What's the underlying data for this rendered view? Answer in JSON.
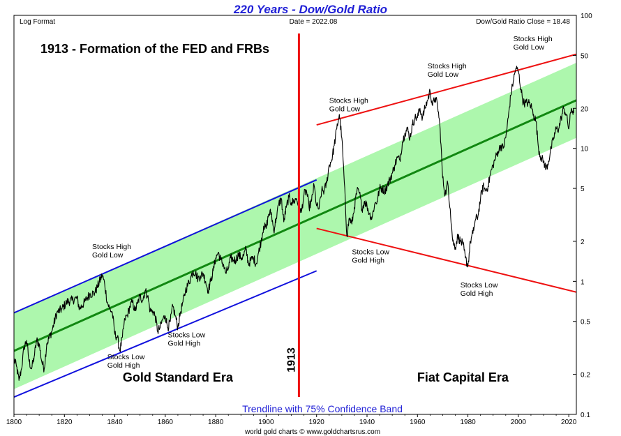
{
  "chart_data": {
    "type": "line",
    "title": "220 Years - Dow/Gold Ratio",
    "subtitle": "Trendline with 75% Confidence Band",
    "header_left": "Log Format",
    "header_center": "Date = 2022.08",
    "header_right": "Dow/Gold Ratio Close = 18.48",
    "footer": "world gold charts © www.goldchartsrus.com",
    "x_range": [
      1800,
      2023
    ],
    "y_range": [
      0.1,
      100
    ],
    "y_scale": "log",
    "x_ticks": [
      1800,
      1820,
      1840,
      1860,
      1880,
      1900,
      1920,
      1940,
      1960,
      1980,
      2000,
      2020
    ],
    "x_tick_labels": [
      "1800",
      "1820",
      "1840",
      "1860",
      "1880",
      "1900",
      "1920",
      "1940",
      "1960",
      "1980",
      "2000",
      "2020"
    ],
    "y_ticks": [
      0.1,
      0.2,
      0.5,
      1,
      2,
      5,
      10,
      20,
      50,
      100
    ],
    "y_tick_labels": [
      "0.1",
      "0.2",
      "0.5",
      "1",
      "2",
      "5",
      "10",
      "20",
      "50",
      "100"
    ],
    "heading": "1913 - Formation of the FED and FRBs",
    "marker_year": 1913,
    "marker_label": "1913",
    "eras": [
      {
        "label": "Gold Standard Era",
        "x": 1865,
        "y": 0.19
      },
      {
        "label": "Fiat Capital Era",
        "x": 1978,
        "y": 0.19
      }
    ],
    "annotations": [
      {
        "lines": [
          "Stocks High",
          "Gold Low"
        ],
        "x": 1831,
        "y": 1.75
      },
      {
        "lines": [
          "Stocks Low",
          "Gold High"
        ],
        "x": 1837,
        "y": 0.26
      },
      {
        "lines": [
          "Stocks Low",
          "Gold High"
        ],
        "x": 1861,
        "y": 0.38
      },
      {
        "lines": [
          "Stocks High",
          "Gold Low"
        ],
        "x": 1925,
        "y": 22
      },
      {
        "lines": [
          "Stocks Low",
          "Gold High"
        ],
        "x": 1934,
        "y": 1.6
      },
      {
        "lines": [
          "Stocks High",
          "Gold Low"
        ],
        "x": 1964,
        "y": 40
      },
      {
        "lines": [
          "Stocks Low",
          "Gold High"
        ],
        "x": 1977,
        "y": 0.9
      },
      {
        "lines": [
          "Stocks High",
          "Gold Low"
        ],
        "x": 1998,
        "y": 64
      }
    ],
    "trend_line": {
      "points": [
        [
          1800,
          0.3
        ],
        [
          2023,
          23
        ]
      ],
      "color": "#118811"
    },
    "confidence_band": {
      "upper": [
        [
          1800,
          0.58
        ],
        [
          2023,
          44
        ]
      ],
      "lower": [
        [
          1800,
          0.155
        ],
        [
          2023,
          12
        ]
      ],
      "color": "#adf7ad"
    },
    "channel_lines": [
      {
        "points": [
          [
            1800,
            0.58
          ],
          [
            1920,
            5.8
          ]
        ],
        "color": "#1111dd"
      },
      {
        "points": [
          [
            1800,
            0.135
          ],
          [
            1920,
            1.2
          ]
        ],
        "color": "#1111dd"
      },
      {
        "points": [
          [
            1920,
            15
          ],
          [
            2023,
            51
          ]
        ],
        "color": "#ee1111"
      },
      {
        "points": [
          [
            1920,
            2.5
          ],
          [
            2023,
            0.83
          ]
        ],
        "color": "#ee1111"
      }
    ],
    "series": [
      {
        "color": "#000000",
        "anchors": [
          [
            1800,
            0.26
          ],
          [
            1801,
            0.23
          ],
          [
            1802,
            0.18
          ],
          [
            1803,
            0.22
          ],
          [
            1804,
            0.32
          ],
          [
            1805,
            0.36
          ],
          [
            1806,
            0.25
          ],
          [
            1807,
            0.22
          ],
          [
            1808,
            0.27
          ],
          [
            1809,
            0.36
          ],
          [
            1810,
            0.34
          ],
          [
            1811,
            0.25
          ],
          [
            1812,
            0.22
          ],
          [
            1813,
            0.34
          ],
          [
            1815,
            0.42
          ],
          [
            1817,
            0.58
          ],
          [
            1819,
            0.62
          ],
          [
            1821,
            0.7
          ],
          [
            1823,
            0.72
          ],
          [
            1825,
            0.75
          ],
          [
            1826,
            0.62
          ],
          [
            1828,
            0.7
          ],
          [
            1830,
            0.8
          ],
          [
            1832,
            0.82
          ],
          [
            1833,
            0.9
          ],
          [
            1835,
            1.12
          ],
          [
            1836,
            0.95
          ],
          [
            1837,
            0.7
          ],
          [
            1838,
            0.62
          ],
          [
            1839,
            0.58
          ],
          [
            1840,
            0.4
          ],
          [
            1841,
            0.38
          ],
          [
            1842,
            0.3
          ],
          [
            1843,
            0.38
          ],
          [
            1844,
            0.52
          ],
          [
            1845,
            0.56
          ],
          [
            1846,
            0.65
          ],
          [
            1847,
            0.7
          ],
          [
            1848,
            0.6
          ],
          [
            1849,
            0.68
          ],
          [
            1850,
            0.78
          ],
          [
            1851,
            0.72
          ],
          [
            1852,
            0.85
          ],
          [
            1853,
            0.78
          ],
          [
            1854,
            0.6
          ],
          [
            1855,
            0.6
          ],
          [
            1856,
            0.55
          ],
          [
            1857,
            0.42
          ],
          [
            1858,
            0.45
          ],
          [
            1859,
            0.52
          ],
          [
            1860,
            0.55
          ],
          [
            1861,
            0.45
          ],
          [
            1862,
            0.5
          ],
          [
            1863,
            0.65
          ],
          [
            1864,
            0.55
          ],
          [
            1865,
            0.45
          ],
          [
            1866,
            0.58
          ],
          [
            1867,
            0.7
          ],
          [
            1868,
            0.85
          ],
          [
            1869,
            0.95
          ],
          [
            1870,
            1.05
          ],
          [
            1871,
            1.2
          ],
          [
            1872,
            1.15
          ],
          [
            1873,
            1.05
          ],
          [
            1874,
            1.1
          ],
          [
            1875,
            1.15
          ],
          [
            1876,
            1.0
          ],
          [
            1877,
            0.85
          ],
          [
            1878,
            1.0
          ],
          [
            1879,
            1.2
          ],
          [
            1880,
            1.5
          ],
          [
            1881,
            1.65
          ],
          [
            1882,
            1.45
          ],
          [
            1883,
            1.35
          ],
          [
            1884,
            1.15
          ],
          [
            1885,
            1.25
          ],
          [
            1886,
            1.5
          ],
          [
            1887,
            1.45
          ],
          [
            1888,
            1.45
          ],
          [
            1889,
            1.6
          ],
          [
            1890,
            1.5
          ],
          [
            1891,
            1.55
          ],
          [
            1892,
            1.75
          ],
          [
            1893,
            1.35
          ],
          [
            1894,
            1.45
          ],
          [
            1895,
            1.5
          ],
          [
            1896,
            1.35
          ],
          [
            1897,
            1.65
          ],
          [
            1898,
            2.0
          ],
          [
            1899,
            2.6
          ],
          [
            1900,
            2.5
          ],
          [
            1901,
            3.2
          ],
          [
            1902,
            3.3
          ],
          [
            1903,
            2.4
          ],
          [
            1904,
            3.0
          ],
          [
            1905,
            3.8
          ],
          [
            1906,
            4.2
          ],
          [
            1907,
            2.8
          ],
          [
            1908,
            3.6
          ],
          [
            1909,
            4.3
          ],
          [
            1910,
            3.9
          ],
          [
            1911,
            4.0
          ],
          [
            1912,
            4.2
          ],
          [
            1913,
            3.7
          ],
          [
            1914,
            3.3
          ],
          [
            1915,
            4.5
          ],
          [
            1916,
            4.8
          ],
          [
            1917,
            3.6
          ],
          [
            1918,
            4.0
          ],
          [
            1919,
            5.3
          ],
          [
            1920,
            3.7
          ],
          [
            1921,
            3.5
          ],
          [
            1922,
            4.8
          ],
          [
            1923,
            4.8
          ],
          [
            1924,
            5.5
          ],
          [
            1925,
            7.5
          ],
          [
            1926,
            8.2
          ],
          [
            1927,
            10.5
          ],
          [
            1928,
            14
          ],
          [
            1929,
            18
          ],
          [
            1930,
            12
          ],
          [
            1931,
            5.5
          ],
          [
            1932,
            2.2
          ],
          [
            1933,
            3.0
          ],
          [
            1934,
            2.7
          ],
          [
            1935,
            3.6
          ],
          [
            1936,
            4.8
          ],
          [
            1937,
            4.6
          ],
          [
            1938,
            3.5
          ],
          [
            1939,
            4.0
          ],
          [
            1940,
            3.7
          ],
          [
            1941,
            3.2
          ],
          [
            1942,
            3.0
          ],
          [
            1943,
            3.8
          ],
          [
            1944,
            4.0
          ],
          [
            1945,
            5.0
          ],
          [
            1946,
            5.0
          ],
          [
            1947,
            4.8
          ],
          [
            1948,
            5.2
          ],
          [
            1949,
            5.8
          ],
          [
            1950,
            6.5
          ],
          [
            1951,
            7.5
          ],
          [
            1952,
            8.5
          ],
          [
            1953,
            8.2
          ],
          [
            1954,
            11
          ],
          [
            1955,
            13
          ],
          [
            1956,
            14
          ],
          [
            1957,
            12
          ],
          [
            1958,
            15
          ],
          [
            1959,
            17
          ],
          [
            1960,
            17
          ],
          [
            1961,
            20
          ],
          [
            1962,
            17
          ],
          [
            1963,
            20
          ],
          [
            1964,
            23
          ],
          [
            1965,
            27
          ],
          [
            1966,
            21
          ],
          [
            1967,
            24
          ],
          [
            1968,
            21
          ],
          [
            1969,
            14
          ],
          [
            1970,
            6
          ],
          [
            1971,
            4.5
          ],
          [
            1972,
            5.5
          ],
          [
            1973,
            3.5
          ],
          [
            1974,
            2.0
          ],
          [
            1975,
            1.8
          ],
          [
            1976,
            2.2
          ],
          [
            1977,
            2.0
          ],
          [
            1978,
            1.9
          ],
          [
            1979,
            1.5
          ],
          [
            1980,
            1.3
          ],
          [
            1981,
            2.0
          ],
          [
            1982,
            2.3
          ],
          [
            1983,
            2.9
          ],
          [
            1984,
            3.1
          ],
          [
            1985,
            4.2
          ],
          [
            1986,
            5.2
          ],
          [
            1987,
            4.8
          ],
          [
            1988,
            5.2
          ],
          [
            1989,
            6.5
          ],
          [
            1990,
            7.5
          ],
          [
            1991,
            8.5
          ],
          [
            1992,
            9.5
          ],
          [
            1993,
            10.5
          ],
          [
            1994,
            10
          ],
          [
            1995,
            12
          ],
          [
            1996,
            17
          ],
          [
            1997,
            25
          ],
          [
            1998,
            32
          ],
          [
            1999,
            40
          ],
          [
            2000,
            38
          ],
          [
            2001,
            28
          ],
          [
            2002,
            22
          ],
          [
            2003,
            22
          ],
          [
            2004,
            22
          ],
          [
            2005,
            21
          ],
          [
            2006,
            18
          ],
          [
            2007,
            16
          ],
          [
            2008,
            10
          ],
          [
            2009,
            8.5
          ],
          [
            2010,
            8
          ],
          [
            2011,
            7
          ],
          [
            2012,
            8
          ],
          [
            2013,
            10
          ],
          [
            2014,
            12
          ],
          [
            2015,
            14
          ],
          [
            2016,
            14
          ],
          [
            2017,
            17
          ],
          [
            2018,
            20
          ],
          [
            2019,
            18
          ],
          [
            2020,
            14
          ],
          [
            2021,
            20
          ],
          [
            2022,
            18.48
          ]
        ]
      }
    ]
  }
}
